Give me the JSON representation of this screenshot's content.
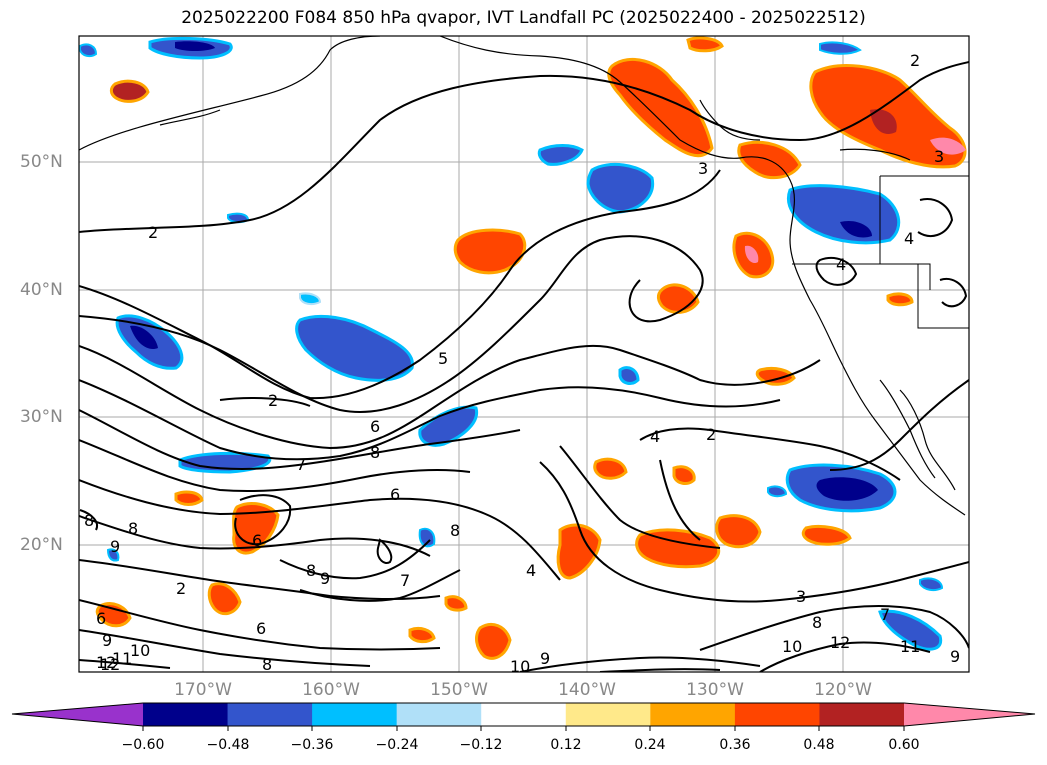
{
  "title": "2025022200 F084 850 hPa qvapor, IVT Landfall PC (2025022400 - 2025022512)",
  "map": {
    "latitude_labels": [
      "50°N",
      "40°N",
      "30°N",
      "20°N"
    ],
    "longitude_labels": [
      "170°W",
      "160°W",
      "150°W",
      "140°W",
      "130°W",
      "120°W"
    ],
    "contour_labels": [
      "2",
      "3",
      "2",
      "5",
      "2",
      "6",
      "8",
      "7",
      "6",
      "8",
      "9",
      "8",
      "7",
      "8",
      "9",
      "6",
      "4",
      "3",
      "9",
      "2",
      "4",
      "10",
      "12",
      "11",
      "8",
      "10",
      "12",
      "11",
      "7",
      "9",
      "3",
      "4",
      "2",
      "4",
      "8",
      "6",
      "12",
      "9",
      "6",
      "10",
      "8"
    ]
  },
  "colorbar": {
    "ticks": [
      "−0.60",
      "−0.48",
      "−0.36",
      "−0.24",
      "−0.12",
      "0.12",
      "0.24",
      "0.36",
      "0.48",
      "0.60"
    ],
    "colors": [
      "#9932cc",
      "#00008b",
      "#3355cc",
      "#00bfff",
      "#b0e0f8",
      "#ffffff",
      "#ffe98a",
      "#ffa500",
      "#ff4500",
      "#b22222",
      "#ff88aa"
    ]
  }
}
